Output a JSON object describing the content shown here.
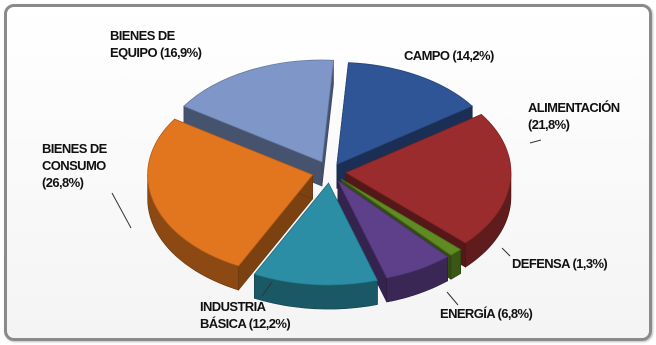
{
  "chart_data": {
    "type": "pie",
    "title": "",
    "legend": "none",
    "slices": [
      {
        "label": "CAMPO (14,2%)",
        "lines": [
          "CAMPO (14,2%)"
        ],
        "value": 14.2,
        "color": "#2f5597"
      },
      {
        "label": "ALIMENTACIÓN (21,8%)",
        "lines": [
          "ALIMENTACIÓN",
          "(21,8%)"
        ],
        "value": 21.8,
        "color": "#9b2c2e"
      },
      {
        "label": "DEFENSA (1,3%)",
        "lines": [
          "DEFENSA (1,3%)"
        ],
        "value": 1.3,
        "color": "#5f8b22"
      },
      {
        "label": "ENERGÍA (6,8%)",
        "lines": [
          "ENERGÍA (6,8%)"
        ],
        "value": 6.8,
        "color": "#5e3f8a"
      },
      {
        "label": "INDUSTRIA BÁSICA (12,2%)",
        "lines": [
          "INDUSTRIA",
          "BÁSICA (12,2%)"
        ],
        "value": 12.2,
        "color": "#2b8ea5"
      },
      {
        "label": "BIENES DE CONSUMO (26,8%)",
        "lines": [
          "BIENES DE",
          "CONSUMO",
          "(26,8%)"
        ],
        "value": 26.8,
        "color": "#e2761f"
      },
      {
        "label": "BIENES DE EQUIPO (16,9%)",
        "lines": [
          "BIENES DE",
          "EQUIPO (16,9%)"
        ],
        "value": 16.9,
        "color": "#7f96c8"
      }
    ]
  }
}
